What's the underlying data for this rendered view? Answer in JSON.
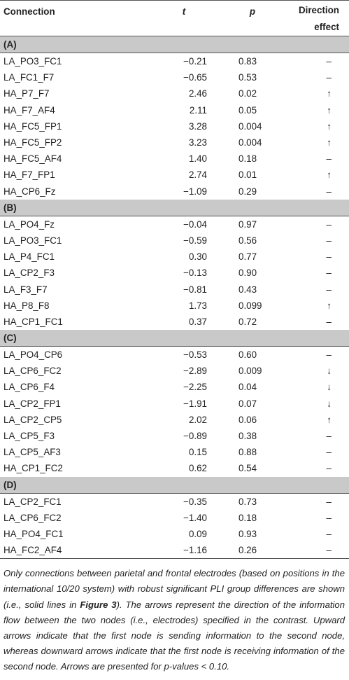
{
  "headers": {
    "connection": "Connection",
    "t": "t",
    "p": "p",
    "direction_line1": "Direction",
    "direction_line2": "effect"
  },
  "sections": [
    {
      "label": "(A)",
      "rows": [
        {
          "connection": "LA_PO3_FC1",
          "t": "−0.21",
          "p": "0.83",
          "direction": "–"
        },
        {
          "connection": "LA_FC1_F7",
          "t": "−0.65",
          "p": "0.53",
          "direction": "–"
        },
        {
          "connection": "HA_P7_F7",
          "t": "2.46",
          "p": "0.02",
          "direction": "↑"
        },
        {
          "connection": "HA_F7_AF4",
          "t": "2.11",
          "p": "0.05",
          "direction": "↑"
        },
        {
          "connection": "HA_FC5_FP1",
          "t": "3.28",
          "p": "0.004",
          "direction": "↑"
        },
        {
          "connection": "HA_FC5_FP2",
          "t": "3.23",
          "p": "0.004",
          "direction": "↑"
        },
        {
          "connection": "HA_FC5_AF4",
          "t": "1.40",
          "p": "0.18",
          "direction": "–"
        },
        {
          "connection": "HA_F7_FP1",
          "t": "2.74",
          "p": "0.01",
          "direction": "↑"
        },
        {
          "connection": "HA_CP6_Fz",
          "t": "−1.09",
          "p": "0.29",
          "direction": "–"
        }
      ]
    },
    {
      "label": "(B)",
      "rows": [
        {
          "connection": "LA_PO4_Fz",
          "t": "−0.04",
          "p": "0.97",
          "direction": "–"
        },
        {
          "connection": "LA_PO3_FC1",
          "t": "−0.59",
          "p": "0.56",
          "direction": "–"
        },
        {
          "connection": "LA_P4_FC1",
          "t": "0.30",
          "p": "0.77",
          "direction": "–"
        },
        {
          "connection": "LA_CP2_F3",
          "t": "−0.13",
          "p": "0.90",
          "direction": "–"
        },
        {
          "connection": "LA_F3_F7",
          "t": "−0.81",
          "p": "0.43",
          "direction": "–"
        },
        {
          "connection": "HA_P8_F8",
          "t": "1.73",
          "p": "0.099",
          "direction": "↑"
        },
        {
          "connection": "HA_CP1_FC1",
          "t": "0.37",
          "p": "0.72",
          "direction": "–"
        }
      ]
    },
    {
      "label": "(C)",
      "rows": [
        {
          "connection": "LA_PO4_CP6",
          "t": "−0.53",
          "p": "0.60",
          "direction": "–"
        },
        {
          "connection": "LA_CP6_FC2",
          "t": "−2.89",
          "p": "0.009",
          "direction": "↓"
        },
        {
          "connection": "LA_CP6_F4",
          "t": "−2.25",
          "p": "0.04",
          "direction": "↓"
        },
        {
          "connection": "LA_CP2_FP1",
          "t": "−1.91",
          "p": "0.07",
          "direction": "↓"
        },
        {
          "connection": "LA_CP2_CP5",
          "t": "2.02",
          "p": "0.06",
          "direction": "↑"
        },
        {
          "connection": "LA_CP5_F3",
          "t": "−0.89",
          "p": "0.38",
          "direction": "–"
        },
        {
          "connection": "LA_CP5_AF3",
          "t": "0.15",
          "p": "0.88",
          "direction": "–"
        },
        {
          "connection": "HA_CP1_FC2",
          "t": "0.62",
          "p": "0.54",
          "direction": "–"
        }
      ]
    },
    {
      "label": "(D)",
      "rows": [
        {
          "connection": "LA_CP2_FC1",
          "t": "−0.35",
          "p": "0.73",
          "direction": "–"
        },
        {
          "connection": "LA_CP6_FC2",
          "t": "−1.40",
          "p": "0.18",
          "direction": "–"
        },
        {
          "connection": "HA_PO4_FC1",
          "t": "0.09",
          "p": "0.93",
          "direction": "–"
        },
        {
          "connection": "HA_FC2_AF4",
          "t": "−1.16",
          "p": "0.26",
          "direction": "–"
        }
      ]
    }
  ],
  "footnote": {
    "before_ref": "Only connections between parietal and frontal electrodes (based on positions in the international 10/20 system) with robust significant PLI group differences are shown (i.e., solid lines in ",
    "ref": "Figure 3",
    "after_ref": "). The arrows represent the direction of the information flow between the two nodes (i.e., electrodes) specified in the contrast. Upward arrows indicate that the first node is sending information to the second node, whereas downward arrows indicate that the first node is receiving information of the second node. Arrows are presented for p-values < 0.10."
  }
}
